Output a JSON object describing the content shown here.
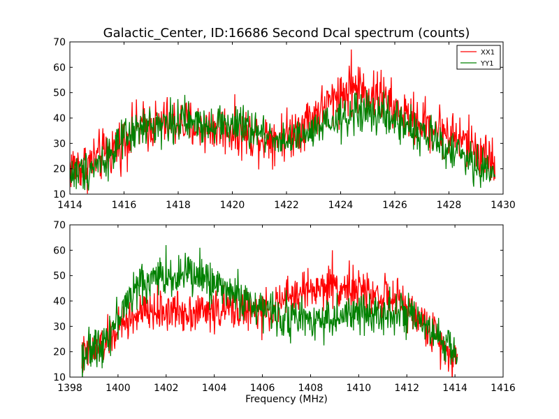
{
  "chart_data": [
    {
      "type": "line",
      "title": "Galactic_Center, ID:16686 Second Dcal spectrum (counts)",
      "xlabel": "",
      "ylabel": "",
      "xlim": [
        1414,
        1430
      ],
      "ylim": [
        10,
        70
      ],
      "xticks": [
        1414,
        1416,
        1418,
        1420,
        1422,
        1424,
        1426,
        1428,
        1430
      ],
      "yticks": [
        10,
        20,
        30,
        40,
        50,
        60,
        70
      ],
      "x_range_data": [
        1414.0,
        1429.7
      ],
      "grid": false,
      "legend": "top-right",
      "series": [
        {
          "name": "XX1",
          "color": "#ff0000",
          "noise": 5,
          "profile": [
            [
              1414.0,
              21
            ],
            [
              1414.5,
              21
            ],
            [
              1415.0,
              24
            ],
            [
              1415.5,
              27
            ],
            [
              1416.0,
              31
            ],
            [
              1416.5,
              36
            ],
            [
              1417.0,
              37
            ],
            [
              1417.5,
              38
            ],
            [
              1418.0,
              38
            ],
            [
              1418.5,
              37
            ],
            [
              1419.0,
              36
            ],
            [
              1419.5,
              36
            ],
            [
              1420.0,
              35
            ],
            [
              1420.5,
              34
            ],
            [
              1421.0,
              33
            ],
            [
              1421.5,
              33
            ],
            [
              1422.0,
              33
            ],
            [
              1422.5,
              37
            ],
            [
              1423.0,
              41
            ],
            [
              1423.5,
              45
            ],
            [
              1424.0,
              49
            ],
            [
              1424.5,
              52
            ],
            [
              1425.0,
              50
            ],
            [
              1425.5,
              48
            ],
            [
              1426.0,
              43
            ],
            [
              1426.5,
              40
            ],
            [
              1427.0,
              38
            ],
            [
              1427.5,
              36
            ],
            [
              1428.0,
              34
            ],
            [
              1428.5,
              31
            ],
            [
              1429.0,
              28
            ],
            [
              1429.5,
              24
            ],
            [
              1429.7,
              21
            ]
          ],
          "peaks": [
            [
              1424.4,
              67
            ],
            [
              1424.7,
              60
            ],
            [
              1425.5,
              59
            ],
            [
              1423.9,
              56
            ]
          ]
        },
        {
          "name": "YY1",
          "color": "#008000",
          "noise": 4,
          "profile": [
            [
              1414.0,
              18
            ],
            [
              1414.5,
              19
            ],
            [
              1415.0,
              22
            ],
            [
              1415.5,
              26
            ],
            [
              1416.0,
              31
            ],
            [
              1416.5,
              35
            ],
            [
              1417.0,
              37
            ],
            [
              1417.5,
              38
            ],
            [
              1418.0,
              39
            ],
            [
              1418.5,
              38
            ],
            [
              1419.0,
              38
            ],
            [
              1419.5,
              38
            ],
            [
              1420.0,
              37
            ],
            [
              1420.5,
              36
            ],
            [
              1421.0,
              34
            ],
            [
              1421.5,
              33
            ],
            [
              1422.0,
              31
            ],
            [
              1422.5,
              32
            ],
            [
              1423.0,
              34
            ],
            [
              1423.5,
              37
            ],
            [
              1424.0,
              39
            ],
            [
              1424.5,
              42
            ],
            [
              1425.0,
              42
            ],
            [
              1425.5,
              41
            ],
            [
              1426.0,
              39
            ],
            [
              1426.5,
              37
            ],
            [
              1427.0,
              34
            ],
            [
              1427.5,
              31
            ],
            [
              1428.0,
              28
            ],
            [
              1428.5,
              25
            ],
            [
              1429.0,
              21
            ],
            [
              1429.5,
              19
            ],
            [
              1429.7,
              18
            ]
          ],
          "peaks": [
            [
              1424.6,
              50
            ],
            [
              1425.2,
              48
            ]
          ]
        }
      ]
    },
    {
      "type": "line",
      "title": "",
      "xlabel": "Frequency (MHz)",
      "ylabel": "",
      "xlim": [
        1398,
        1416
      ],
      "ylim": [
        10,
        70
      ],
      "xticks": [
        1398,
        1400,
        1402,
        1404,
        1406,
        1408,
        1410,
        1412,
        1414,
        1416
      ],
      "yticks": [
        10,
        20,
        30,
        40,
        50,
        60,
        70
      ],
      "x_range_data": [
        1398.5,
        1414.1
      ],
      "grid": false,
      "series": [
        {
          "name": "XX1",
          "color": "#ff0000",
          "noise": 4,
          "profile": [
            [
              1398.5,
              18
            ],
            [
              1399.0,
              20
            ],
            [
              1399.5,
              24
            ],
            [
              1400.0,
              29
            ],
            [
              1400.5,
              33
            ],
            [
              1401.0,
              35
            ],
            [
              1401.5,
              36
            ],
            [
              1402.0,
              36
            ],
            [
              1402.5,
              36
            ],
            [
              1403.0,
              36
            ],
            [
              1403.5,
              36
            ],
            [
              1404.0,
              36
            ],
            [
              1404.5,
              37
            ],
            [
              1405.0,
              37
            ],
            [
              1405.5,
              36
            ],
            [
              1406.0,
              35
            ],
            [
              1406.5,
              37
            ],
            [
              1407.0,
              41
            ],
            [
              1407.5,
              43
            ],
            [
              1408.0,
              44
            ],
            [
              1408.5,
              45
            ],
            [
              1409.0,
              46
            ],
            [
              1409.5,
              45
            ],
            [
              1410.0,
              44
            ],
            [
              1410.5,
              43
            ],
            [
              1411.0,
              42
            ],
            [
              1411.5,
              40
            ],
            [
              1412.0,
              37
            ],
            [
              1412.5,
              33
            ],
            [
              1413.0,
              28
            ],
            [
              1413.5,
              23
            ],
            [
              1414.0,
              18
            ],
            [
              1414.1,
              16
            ]
          ],
          "peaks": [
            [
              1408.9,
              60
            ],
            [
              1409.6,
              56
            ],
            [
              1407.9,
              53
            ]
          ]
        },
        {
          "name": "YY1",
          "color": "#008000",
          "noise": 4,
          "profile": [
            [
              1398.5,
              19
            ],
            [
              1399.0,
              21
            ],
            [
              1399.5,
              26
            ],
            [
              1400.0,
              33
            ],
            [
              1400.5,
              42
            ],
            [
              1401.0,
              47
            ],
            [
              1401.5,
              49
            ],
            [
              1402.0,
              50
            ],
            [
              1402.5,
              50
            ],
            [
              1403.0,
              50
            ],
            [
              1403.5,
              49
            ],
            [
              1404.0,
              47
            ],
            [
              1404.5,
              45
            ],
            [
              1405.0,
              42
            ],
            [
              1405.5,
              39
            ],
            [
              1406.0,
              37
            ],
            [
              1406.5,
              35
            ],
            [
              1407.0,
              34
            ],
            [
              1407.5,
              33
            ],
            [
              1408.0,
              33
            ],
            [
              1408.5,
              33
            ],
            [
              1409.0,
              33
            ],
            [
              1409.5,
              34
            ],
            [
              1410.0,
              35
            ],
            [
              1410.5,
              35
            ],
            [
              1411.0,
              36
            ],
            [
              1411.5,
              36
            ],
            [
              1412.0,
              34
            ],
            [
              1412.5,
              31
            ],
            [
              1413.0,
              27
            ],
            [
              1413.5,
              24
            ],
            [
              1414.0,
              21
            ],
            [
              1414.1,
              20
            ]
          ],
          "peaks": [
            [
              1402.0,
              62
            ],
            [
              1403.4,
              61
            ],
            [
              1402.8,
              59
            ]
          ]
        }
      ]
    }
  ]
}
